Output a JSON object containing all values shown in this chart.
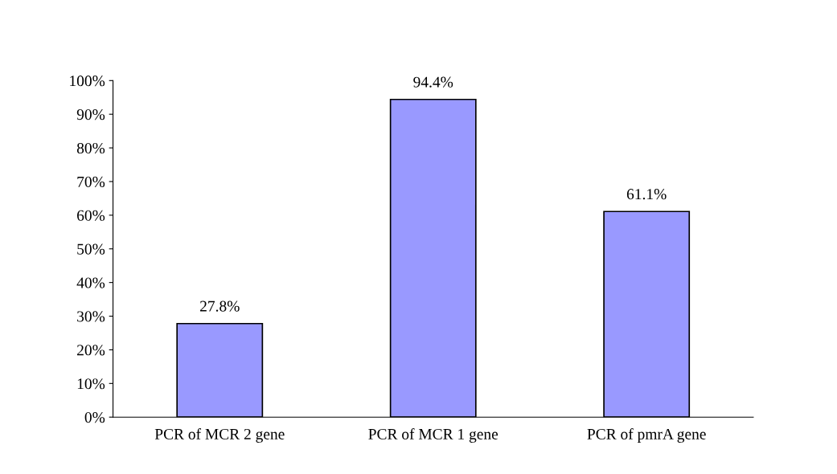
{
  "chart_data": {
    "type": "bar",
    "categories": [
      "PCR of MCR 2 gene",
      "PCR of MCR 1 gene",
      "PCR of pmrA gene"
    ],
    "values": [
      27.8,
      94.4,
      61.1
    ],
    "value_labels": [
      "27.8%",
      "94.4%",
      "61.1%"
    ],
    "color": "#9999ff",
    "ylim": [
      0,
      100
    ],
    "yticks": [
      {
        "value": 0,
        "label": "0%"
      },
      {
        "value": 10,
        "label": "10%"
      },
      {
        "value": 20,
        "label": "20%"
      },
      {
        "value": 30,
        "label": "30%"
      },
      {
        "value": 40,
        "label": "40%"
      },
      {
        "value": 50,
        "label": "50%"
      },
      {
        "value": 60,
        "label": "60%"
      },
      {
        "value": 70,
        "label": "70%"
      },
      {
        "value": 80,
        "label": "80%"
      },
      {
        "value": 90,
        "label": "90%"
      },
      {
        "value": 100,
        "label": "100%"
      }
    ],
    "grid": false
  }
}
